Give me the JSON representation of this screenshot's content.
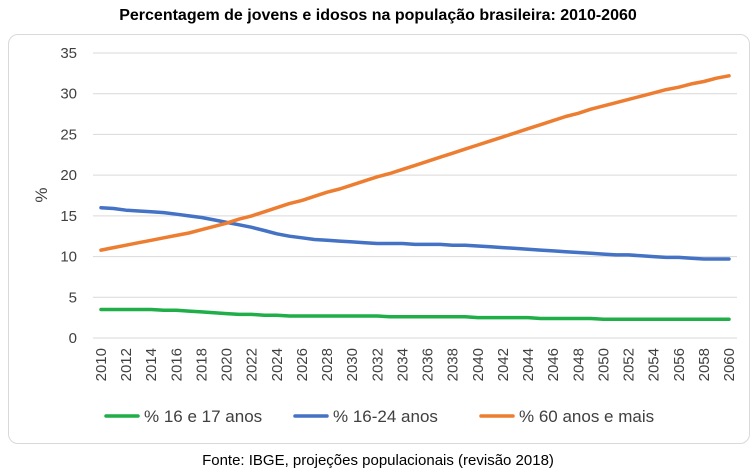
{
  "source": "Fonte: IBGE, projeções populacionais (revisão 2018)",
  "chart_data": {
    "type": "line",
    "title": "Percentagem de jovens e idosos na população brasileira: 2010-2060",
    "xlabel": "",
    "ylabel": "%",
    "ylim": [
      0,
      35
    ],
    "yticks": [
      0,
      5,
      10,
      15,
      20,
      25,
      30,
      35
    ],
    "xticks": [
      "2010",
      "2012",
      "2014",
      "2016",
      "2018",
      "2020",
      "2022",
      "2024",
      "2026",
      "2028",
      "2030",
      "2032",
      "2034",
      "2036",
      "2038",
      "2040",
      "2042",
      "2044",
      "2046",
      "2048",
      "2050",
      "2052",
      "2054",
      "2056",
      "2058",
      "2060"
    ],
    "grid": "horizontal",
    "legend_position": "bottom",
    "x": [
      2010,
      2011,
      2012,
      2013,
      2014,
      2015,
      2016,
      2017,
      2018,
      2019,
      2020,
      2021,
      2022,
      2023,
      2024,
      2025,
      2026,
      2027,
      2028,
      2029,
      2030,
      2031,
      2032,
      2033,
      2034,
      2035,
      2036,
      2037,
      2038,
      2039,
      2040,
      2041,
      2042,
      2043,
      2044,
      2045,
      2046,
      2047,
      2048,
      2049,
      2050,
      2051,
      2052,
      2053,
      2054,
      2055,
      2056,
      2057,
      2058,
      2059,
      2060
    ],
    "series": [
      {
        "name": "% 16 e 17 anos",
        "color": "#1fae48",
        "values": [
          3.5,
          3.5,
          3.5,
          3.5,
          3.5,
          3.4,
          3.4,
          3.3,
          3.2,
          3.1,
          3.0,
          2.9,
          2.9,
          2.8,
          2.8,
          2.7,
          2.7,
          2.7,
          2.7,
          2.7,
          2.7,
          2.7,
          2.7,
          2.6,
          2.6,
          2.6,
          2.6,
          2.6,
          2.6,
          2.6,
          2.5,
          2.5,
          2.5,
          2.5,
          2.5,
          2.4,
          2.4,
          2.4,
          2.4,
          2.4,
          2.3,
          2.3,
          2.3,
          2.3,
          2.3,
          2.3,
          2.3,
          2.3,
          2.3,
          2.3,
          2.3
        ]
      },
      {
        "name": "% 16-24 anos",
        "color": "#4472c4",
        "values": [
          16.0,
          15.9,
          15.7,
          15.6,
          15.5,
          15.4,
          15.2,
          15.0,
          14.8,
          14.5,
          14.2,
          13.9,
          13.6,
          13.2,
          12.8,
          12.5,
          12.3,
          12.1,
          12.0,
          11.9,
          11.8,
          11.7,
          11.6,
          11.6,
          11.6,
          11.5,
          11.5,
          11.5,
          11.4,
          11.4,
          11.3,
          11.2,
          11.1,
          11.0,
          10.9,
          10.8,
          10.7,
          10.6,
          10.5,
          10.4,
          10.3,
          10.2,
          10.2,
          10.1,
          10.0,
          9.9,
          9.9,
          9.8,
          9.7,
          9.7,
          9.7
        ]
      },
      {
        "name": "% 60 anos e mais",
        "color": "#ed7d31",
        "values": [
          10.8,
          11.1,
          11.4,
          11.7,
          12.0,
          12.3,
          12.6,
          12.9,
          13.3,
          13.7,
          14.1,
          14.6,
          15.0,
          15.5,
          16.0,
          16.5,
          16.9,
          17.4,
          17.9,
          18.3,
          18.8,
          19.3,
          19.8,
          20.2,
          20.7,
          21.2,
          21.7,
          22.2,
          22.7,
          23.2,
          23.7,
          24.2,
          24.7,
          25.2,
          25.7,
          26.2,
          26.7,
          27.2,
          27.6,
          28.1,
          28.5,
          28.9,
          29.3,
          29.7,
          30.1,
          30.5,
          30.8,
          31.2,
          31.5,
          31.9,
          32.2
        ]
      }
    ]
  }
}
